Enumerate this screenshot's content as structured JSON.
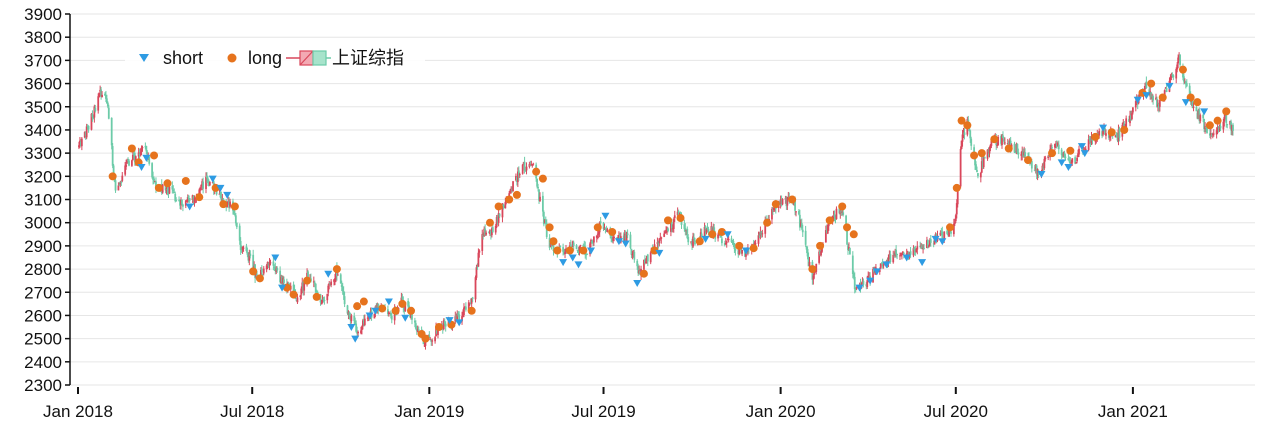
{
  "chart_data": {
    "type": "candlestick",
    "grid": "horizontal",
    "legend_position": "top-left",
    "ylim": [
      2300,
      3900
    ],
    "yticks": [
      2300,
      2400,
      2500,
      2600,
      2700,
      2800,
      2900,
      3000,
      3100,
      3200,
      3300,
      3400,
      3500,
      3600,
      3700,
      3800,
      3900
    ],
    "ytick_labels": [
      "2300",
      "2400",
      "2500",
      "2600",
      "2700",
      "2800",
      "2900",
      "3000",
      "3100",
      "3200",
      "3300",
      "3400",
      "3500",
      "3600",
      "3700",
      "3800",
      "3900"
    ],
    "xlim": [
      "2018-01-01",
      "2021-04-15"
    ],
    "xticks": [
      "2018-01-01",
      "2018-07-01",
      "2019-01-01",
      "2019-07-01",
      "2020-01-01",
      "2020-07-01",
      "2021-01-01"
    ],
    "xtick_labels": [
      "Jan 2018",
      "Jul 2018",
      "Jan 2019",
      "Jul 2019",
      "Jan 2020",
      "Jul 2020",
      "Jan 2021"
    ],
    "legend": [
      {
        "label": "short",
        "color": "#2e9be3",
        "marker": "triangle-down"
      },
      {
        "label": "long",
        "color": "#e6731d",
        "marker": "circle"
      },
      {
        "label": "上证综指",
        "up_color": "#d9475b",
        "down_color": "#6ccba8",
        "marker": "candle"
      }
    ],
    "colors": {
      "up": "#d9475b",
      "down": "#6ccba8",
      "short": "#2e9be3",
      "long": "#e6731d",
      "grid": "#e6e6e6",
      "axis": "#111111"
    },
    "close_series": {
      "name": "上证综指",
      "points": [
        [
          "2018-01-02",
          3330
        ],
        [
          "2018-01-12",
          3410
        ],
        [
          "2018-01-24",
          3560
        ],
        [
          "2018-01-29",
          3570
        ],
        [
          "2018-02-02",
          3450
        ],
        [
          "2018-02-09",
          3130
        ],
        [
          "2018-02-22",
          3260
        ],
        [
          "2018-03-12",
          3320
        ],
        [
          "2018-03-23",
          3150
        ],
        [
          "2018-04-03",
          3150
        ],
        [
          "2018-04-18",
          3080
        ],
        [
          "2018-05-02",
          3110
        ],
        [
          "2018-05-15",
          3190
        ],
        [
          "2018-05-28",
          3120
        ],
        [
          "2018-06-12",
          3050
        ],
        [
          "2018-06-20",
          2880
        ],
        [
          "2018-06-29",
          2850
        ],
        [
          "2018-07-06",
          2750
        ],
        [
          "2018-07-20",
          2840
        ],
        [
          "2018-08-02",
          2740
        ],
        [
          "2018-08-17",
          2680
        ],
        [
          "2018-08-28",
          2770
        ],
        [
          "2018-09-12",
          2660
        ],
        [
          "2018-09-26",
          2790
        ],
        [
          "2018-10-11",
          2590
        ],
        [
          "2018-10-19",
          2520
        ],
        [
          "2018-10-30",
          2600
        ],
        [
          "2018-11-09",
          2640
        ],
        [
          "2018-11-23",
          2600
        ],
        [
          "2018-12-04",
          2660
        ],
        [
          "2018-12-14",
          2590
        ],
        [
          "2018-12-27",
          2490
        ],
        [
          "2019-01-04",
          2510
        ],
        [
          "2019-01-18",
          2570
        ],
        [
          "2019-01-31",
          2590
        ],
        [
          "2019-02-15",
          2680
        ],
        [
          "2019-02-25",
          2960
        ],
        [
          "2019-03-08",
          2970
        ],
        [
          "2019-03-22",
          3100
        ],
        [
          "2019-04-08",
          3240
        ],
        [
          "2019-04-19",
          3250
        ],
        [
          "2019-04-26",
          3090
        ],
        [
          "2019-05-06",
          2900
        ],
        [
          "2019-05-17",
          2880
        ],
        [
          "2019-05-31",
          2900
        ],
        [
          "2019-06-14",
          2880
        ],
        [
          "2019-06-28",
          3000
        ],
        [
          "2019-07-12",
          2930
        ],
        [
          "2019-07-26",
          2940
        ],
        [
          "2019-08-06",
          2780
        ],
        [
          "2019-08-20",
          2880
        ],
        [
          "2019-09-04",
          2950
        ],
        [
          "2019-09-16",
          3030
        ],
        [
          "2019-09-30",
          2910
        ],
        [
          "2019-10-17",
          2980
        ],
        [
          "2019-10-31",
          2930
        ],
        [
          "2019-11-15",
          2890
        ],
        [
          "2019-11-29",
          2870
        ],
        [
          "2019-12-13",
          2970
        ],
        [
          "2019-12-25",
          3080
        ],
        [
          "2020-01-14",
          3100
        ],
        [
          "2020-01-23",
          2970
        ],
        [
          "2020-02-03",
          2750
        ],
        [
          "2020-02-14",
          2920
        ],
        [
          "2020-02-24",
          3030
        ],
        [
          "2020-03-05",
          3050
        ],
        [
          "2020-03-19",
          2700
        ],
        [
          "2020-03-31",
          2750
        ],
        [
          "2020-04-17",
          2830
        ],
        [
          "2020-04-30",
          2860
        ],
        [
          "2020-05-20",
          2880
        ],
        [
          "2020-06-05",
          2920
        ],
        [
          "2020-06-30",
          2980
        ],
        [
          "2020-07-06",
          3330
        ],
        [
          "2020-07-13",
          3440
        ],
        [
          "2020-07-24",
          3200
        ],
        [
          "2020-08-07",
          3350
        ],
        [
          "2020-08-20",
          3360
        ],
        [
          "2020-09-07",
          3300
        ],
        [
          "2020-09-25",
          3220
        ],
        [
          "2020-10-14",
          3340
        ],
        [
          "2020-10-28",
          3250
        ],
        [
          "2020-11-16",
          3350
        ],
        [
          "2020-11-30",
          3390
        ],
        [
          "2020-12-15",
          3370
        ],
        [
          "2020-12-31",
          3470
        ],
        [
          "2021-01-13",
          3590
        ],
        [
          "2021-01-28",
          3500
        ],
        [
          "2021-02-10",
          3620
        ],
        [
          "2021-02-18",
          3700
        ],
        [
          "2021-03-04",
          3500
        ],
        [
          "2021-03-12",
          3450
        ],
        [
          "2021-03-25",
          3360
        ],
        [
          "2021-04-08",
          3450
        ],
        [
          "2021-04-15",
          3400
        ]
      ]
    },
    "long_signals": {
      "name": "long",
      "points": [
        [
          "2018-02-06",
          3200
        ],
        [
          "2018-02-26",
          3320
        ],
        [
          "2018-03-05",
          3260
        ],
        [
          "2018-03-21",
          3290
        ],
        [
          "2018-03-26",
          3150
        ],
        [
          "2018-04-04",
          3170
        ],
        [
          "2018-04-23",
          3180
        ],
        [
          "2018-05-07",
          3110
        ],
        [
          "2018-05-24",
          3150
        ],
        [
          "2018-06-01",
          3080
        ],
        [
          "2018-06-13",
          3070
        ],
        [
          "2018-07-02",
          2790
        ],
        [
          "2018-07-09",
          2760
        ],
        [
          "2018-08-06",
          2720
        ],
        [
          "2018-08-13",
          2690
        ],
        [
          "2018-08-27",
          2750
        ],
        [
          "2018-09-06",
          2680
        ],
        [
          "2018-09-27",
          2800
        ],
        [
          "2018-10-18",
          2640
        ],
        [
          "2018-10-25",
          2660
        ],
        [
          "2018-11-13",
          2630
        ],
        [
          "2018-11-27",
          2620
        ],
        [
          "2018-12-04",
          2650
        ],
        [
          "2018-12-13",
          2620
        ],
        [
          "2018-12-24",
          2520
        ],
        [
          "2018-12-28",
          2500
        ],
        [
          "2019-01-11",
          2550
        ],
        [
          "2019-01-24",
          2560
        ],
        [
          "2019-02-14",
          2620
        ],
        [
          "2019-03-05",
          3000
        ],
        [
          "2019-03-14",
          3070
        ],
        [
          "2019-03-25",
          3100
        ],
        [
          "2019-04-02",
          3120
        ],
        [
          "2019-04-22",
          3220
        ],
        [
          "2019-04-29",
          3190
        ],
        [
          "2019-05-06",
          2980
        ],
        [
          "2019-05-10",
          2920
        ],
        [
          "2019-05-14",
          2880
        ],
        [
          "2019-05-27",
          2880
        ],
        [
          "2019-06-10",
          2880
        ],
        [
          "2019-06-25",
          2980
        ],
        [
          "2019-07-10",
          2960
        ],
        [
          "2019-08-12",
          2780
        ],
        [
          "2019-08-23",
          2880
        ],
        [
          "2019-09-06",
          3010
        ],
        [
          "2019-09-19",
          3020
        ],
        [
          "2019-10-09",
          2920
        ],
        [
          "2019-10-22",
          2950
        ],
        [
          "2019-11-01",
          2960
        ],
        [
          "2019-11-19",
          2900
        ],
        [
          "2019-12-04",
          2890
        ],
        [
          "2019-12-18",
          3000
        ],
        [
          "2019-12-27",
          3080
        ],
        [
          "2020-01-13",
          3100
        ],
        [
          "2020-02-03",
          2800
        ],
        [
          "2020-02-11",
          2900
        ],
        [
          "2020-02-21",
          3010
        ],
        [
          "2020-03-05",
          3070
        ],
        [
          "2020-03-10",
          2980
        ],
        [
          "2020-03-17",
          2950
        ],
        [
          "2020-06-25",
          2980
        ],
        [
          "2020-07-02",
          3150
        ],
        [
          "2020-07-07",
          3440
        ],
        [
          "2020-07-13",
          3420
        ],
        [
          "2020-07-20",
          3290
        ],
        [
          "2020-07-28",
          3300
        ],
        [
          "2020-08-10",
          3360
        ],
        [
          "2020-08-25",
          3320
        ],
        [
          "2020-09-14",
          3270
        ],
        [
          "2020-10-09",
          3300
        ],
        [
          "2020-10-28",
          3310
        ],
        [
          "2020-11-23",
          3370
        ],
        [
          "2020-12-10",
          3390
        ],
        [
          "2020-12-23",
          3400
        ],
        [
          "2021-01-11",
          3560
        ],
        [
          "2021-01-20",
          3600
        ],
        [
          "2021-02-01",
          3540
        ],
        [
          "2021-02-22",
          3660
        ],
        [
          "2021-03-02",
          3540
        ],
        [
          "2021-03-09",
          3520
        ],
        [
          "2021-03-22",
          3420
        ],
        [
          "2021-03-30",
          3440
        ],
        [
          "2021-04-08",
          3480
        ]
      ]
    },
    "short_signals": {
      "name": "short",
      "points": [
        [
          "2018-03-08",
          3240
        ],
        [
          "2018-03-13",
          3280
        ],
        [
          "2018-04-27",
          3070
        ],
        [
          "2018-05-21",
          3190
        ],
        [
          "2018-05-29",
          3150
        ],
        [
          "2018-06-05",
          3120
        ],
        [
          "2018-07-25",
          2850
        ],
        [
          "2018-08-01",
          2720
        ],
        [
          "2018-09-18",
          2780
        ],
        [
          "2018-10-12",
          2550
        ],
        [
          "2018-10-16",
          2500
        ],
        [
          "2018-10-31",
          2600
        ],
        [
          "2018-11-06",
          2620
        ],
        [
          "2018-11-20",
          2660
        ],
        [
          "2018-12-07",
          2590
        ],
        [
          "2019-01-22",
          2580
        ],
        [
          "2019-02-01",
          2570
        ],
        [
          "2019-05-20",
          2830
        ],
        [
          "2019-05-30",
          2850
        ],
        [
          "2019-06-05",
          2820
        ],
        [
          "2019-06-18",
          2880
        ],
        [
          "2019-07-03",
          3030
        ],
        [
          "2019-07-17",
          2920
        ],
        [
          "2019-07-24",
          2910
        ],
        [
          "2019-08-05",
          2740
        ],
        [
          "2019-08-28",
          2870
        ],
        [
          "2019-10-15",
          2930
        ],
        [
          "2019-11-07",
          2950
        ],
        [
          "2019-11-26",
          2880
        ],
        [
          "2020-03-23",
          2720
        ],
        [
          "2020-04-03",
          2750
        ],
        [
          "2020-04-10",
          2790
        ],
        [
          "2020-04-20",
          2820
        ],
        [
          "2020-05-11",
          2850
        ],
        [
          "2020-05-27",
          2830
        ],
        [
          "2020-06-10",
          2930
        ],
        [
          "2020-06-17",
          2920
        ],
        [
          "2020-09-28",
          3210
        ],
        [
          "2020-10-19",
          3260
        ],
        [
          "2020-10-26",
          3240
        ],
        [
          "2020-11-09",
          3330
        ],
        [
          "2020-11-12",
          3300
        ],
        [
          "2020-12-01",
          3410
        ],
        [
          "2021-01-06",
          3530
        ],
        [
          "2021-01-15",
          3550
        ],
        [
          "2021-02-08",
          3590
        ],
        [
          "2021-02-25",
          3520
        ],
        [
          "2021-03-16",
          3480
        ]
      ]
    }
  }
}
